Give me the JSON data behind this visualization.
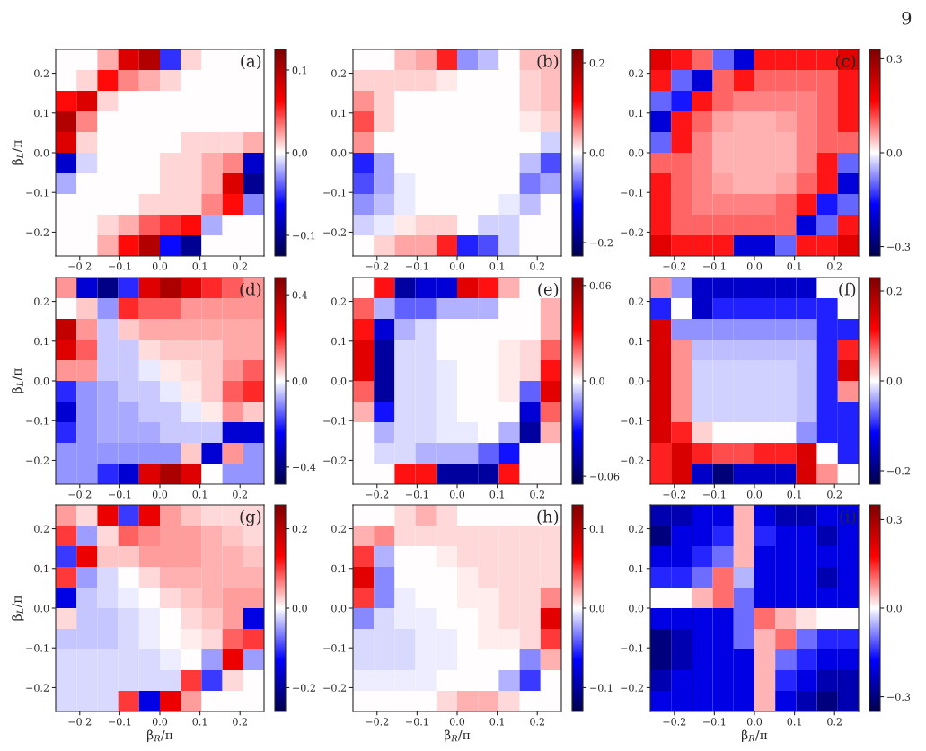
{
  "chart_data": [
    {
      "type": "heatmap",
      "title": "(a)",
      "ylabel": "β$_{L}$/π",
      "annotations": [
        "9"
      ],
      "x": [
        -0.234,
        -0.182,
        -0.13,
        -0.078,
        -0.026,
        0.026,
        0.078,
        0.13,
        0.182,
        0.234
      ],
      "y": [
        0.234,
        0.182,
        0.13,
        0.078,
        0.026,
        -0.026,
        -0.078,
        -0.13,
        -0.182,
        -0.234
      ],
      "xlim": [
        -0.26,
        0.26
      ],
      "ylim": [
        -0.26,
        0.26
      ],
      "xticks": [
        {
          "value": -0.2,
          "label": "−0.2"
        },
        {
          "value": -0.1,
          "label": "−0.1"
        },
        {
          "value": 0,
          "label": "0.0"
        },
        {
          "value": 0.1,
          "label": "0.1"
        },
        {
          "value": 0.2,
          "label": "0.2"
        }
      ],
      "yticks": [
        {
          "value": -0.2,
          "label": "−0.2"
        },
        {
          "value": -0.1,
          "label": "−0.1"
        },
        {
          "value": 0,
          "label": "0.0"
        },
        {
          "value": 0.1,
          "label": "0.1"
        },
        {
          "value": 0.2,
          "label": "0.2"
        }
      ],
      "clim": [
        -0.125,
        0.125
      ],
      "cticks": [
        {
          "value": -0.1,
          "label": "−0.1"
        },
        {
          "value": 0,
          "label": "0.0"
        },
        {
          "value": 0.1,
          "label": "0.1"
        }
      ],
      "cells": [
        [
          0,
          0,
          0.02,
          0.08,
          0.1,
          -0.05,
          0.01,
          0,
          0,
          0
        ],
        [
          0,
          0.01,
          0.06,
          0.03,
          0.02,
          0.01,
          0,
          0,
          0,
          0
        ],
        [
          0.06,
          0.08,
          0.01,
          0,
          0,
          0,
          0,
          0,
          0,
          0
        ],
        [
          0.1,
          0.03,
          0,
          0,
          0,
          0,
          0,
          0,
          0,
          0
        ],
        [
          0.08,
          0.01,
          0,
          0,
          0,
          0,
          0.01,
          0.01,
          0.01,
          0.02
        ],
        [
          -0.08,
          -0.01,
          0,
          0,
          0,
          0.01,
          0.01,
          0.02,
          0.03,
          -0.08
        ],
        [
          -0.02,
          0,
          0,
          0,
          0,
          0.01,
          0.01,
          0.02,
          0.08,
          -0.1
        ],
        [
          0,
          0,
          0,
          0,
          0.01,
          0.01,
          0.01,
          0.03,
          0.06,
          -0.03
        ],
        [
          0,
          0,
          0.01,
          0.02,
          0.04,
          0.05,
          0.06,
          -0.02,
          0,
          0
        ],
        [
          0,
          0,
          0.02,
          0.06,
          0.1,
          -0.06,
          -0.1,
          0,
          0,
          0
        ]
      ]
    },
    {
      "type": "heatmap",
      "title": "(b)",
      "x": [
        -0.234,
        -0.182,
        -0.13,
        -0.078,
        -0.026,
        0.026,
        0.078,
        0.13,
        0.182,
        0.234
      ],
      "y": [
        0.234,
        0.182,
        0.13,
        0.078,
        0.026,
        -0.026,
        -0.078,
        -0.13,
        -0.182,
        -0.234
      ],
      "xlim": [
        -0.26,
        0.26
      ],
      "ylim": [
        -0.26,
        0.26
      ],
      "xticks": [
        {
          "value": -0.2,
          "label": "−0.2"
        },
        {
          "value": -0.1,
          "label": "−0.1"
        },
        {
          "value": 0,
          "label": "0.0"
        },
        {
          "value": 0.1,
          "label": "0.1"
        },
        {
          "value": 0.2,
          "label": "0.2"
        }
      ],
      "yticks": [
        {
          "value": -0.2,
          "label": "−0.2"
        },
        {
          "value": -0.1,
          "label": "−0.1"
        },
        {
          "value": 0,
          "label": "0.0"
        },
        {
          "value": 0.1,
          "label": "0.1"
        },
        {
          "value": 0.2,
          "label": "0.2"
        }
      ],
      "clim": [
        -0.23,
        0.23
      ],
      "cticks": [
        {
          "value": -0.2,
          "label": "−0.2"
        },
        {
          "value": 0,
          "label": "0.0"
        },
        {
          "value": 0.2,
          "label": "0.2"
        }
      ],
      "cells": [
        [
          0,
          0,
          0.03,
          0.04,
          0.1,
          -0.05,
          -0.03,
          0,
          0.03,
          0.03
        ],
        [
          0.02,
          0.02,
          0.02,
          0.02,
          0.01,
          0,
          0,
          0,
          0.02,
          0.03
        ],
        [
          0.05,
          0.02,
          0,
          0,
          0,
          0,
          0,
          0,
          0.02,
          0.03
        ],
        [
          0.08,
          0.02,
          0,
          0,
          0,
          0,
          0,
          0,
          0.01,
          0.02
        ],
        [
          0.05,
          0,
          0,
          0,
          0,
          0,
          0,
          0,
          0,
          -0.02
        ],
        [
          -0.1,
          -0.04,
          0,
          0,
          0,
          0,
          0,
          0,
          -0.03,
          -0.08
        ],
        [
          -0.08,
          -0.04,
          -0.01,
          0,
          0,
          0,
          0,
          0,
          -0.06,
          -0.04
        ],
        [
          -0.05,
          -0.03,
          -0.01,
          0,
          0,
          0,
          0,
          -0.01,
          -0.03,
          0
        ],
        [
          -0.02,
          -0.01,
          0.01,
          0.02,
          0.02,
          0,
          -0.02,
          -0.02,
          0,
          0
        ],
        [
          0,
          0.02,
          0.04,
          0.04,
          0.1,
          -0.1,
          -0.08,
          -0.02,
          0,
          0
        ]
      ]
    },
    {
      "type": "heatmap",
      "title": "(c)",
      "x": [
        -0.234,
        -0.182,
        -0.13,
        -0.078,
        -0.026,
        0.026,
        0.078,
        0.13,
        0.182,
        0.234
      ],
      "y": [
        0.234,
        0.182,
        0.13,
        0.078,
        0.026,
        -0.026,
        -0.078,
        -0.13,
        -0.182,
        -0.234
      ],
      "xlim": [
        -0.26,
        0.26
      ],
      "ylim": [
        -0.26,
        0.26
      ],
      "xticks": [
        {
          "value": -0.2,
          "label": "−0.2"
        },
        {
          "value": -0.1,
          "label": "−0.1"
        },
        {
          "value": 0,
          "label": "0.0"
        },
        {
          "value": 0.1,
          "label": "0.1"
        },
        {
          "value": 0.2,
          "label": "0.2"
        }
      ],
      "yticks": [
        {
          "value": -0.2,
          "label": "−0.2"
        },
        {
          "value": -0.1,
          "label": "−0.1"
        },
        {
          "value": 0,
          "label": "0.0"
        },
        {
          "value": 0.1,
          "label": "0.1"
        },
        {
          "value": 0.2,
          "label": "0.2"
        }
      ],
      "clim": [
        -0.33,
        0.33
      ],
      "cticks": [
        {
          "value": -0.3,
          "label": "−0.3"
        },
        {
          "value": 0,
          "label": "0.0"
        },
        {
          "value": 0.3,
          "label": "0.3"
        }
      ],
      "cells": [
        [
          0.2,
          0.15,
          0.1,
          -0.1,
          -0.2,
          0.15,
          0.15,
          0.15,
          0.15,
          0.2
        ],
        [
          0.15,
          -0.1,
          -0.2,
          0.1,
          0.15,
          0.1,
          0.1,
          0.1,
          0.1,
          0.15
        ],
        [
          -0.1,
          -0.15,
          0.15,
          0.1,
          0.08,
          0.08,
          0.08,
          0.08,
          0.1,
          0.15
        ],
        [
          -0.2,
          0.15,
          0.1,
          0.06,
          0.05,
          0.05,
          0.06,
          0.08,
          0.1,
          0.15
        ],
        [
          -0.1,
          0.15,
          0.08,
          0.05,
          0.05,
          0.05,
          0.05,
          0.08,
          0.1,
          0.1
        ],
        [
          0.1,
          0.1,
          0.08,
          0.05,
          0.05,
          0.05,
          0.05,
          0.08,
          0.15,
          -0.1
        ],
        [
          0.15,
          0.1,
          0.08,
          0.06,
          0.05,
          0.05,
          0.06,
          0.1,
          0.15,
          -0.2
        ],
        [
          0.15,
          0.1,
          0.08,
          0.08,
          0.08,
          0.08,
          0.1,
          0.15,
          -0.15,
          -0.1
        ],
        [
          0.15,
          0.1,
          0.1,
          0.1,
          0.1,
          0.1,
          0.1,
          -0.2,
          -0.1,
          0.15
        ],
        [
          0.2,
          0.15,
          0.15,
          0.15,
          -0.2,
          -0.2,
          -0.1,
          0.15,
          0.15,
          0.2
        ]
      ]
    },
    {
      "type": "heatmap",
      "title": "(d)",
      "ylabel": "β$_{L}$/π",
      "x": [
        -0.234,
        -0.182,
        -0.13,
        -0.078,
        -0.026,
        0.026,
        0.078,
        0.13,
        0.182,
        0.234
      ],
      "y": [
        0.234,
        0.182,
        0.13,
        0.078,
        0.026,
        -0.026,
        -0.078,
        -0.13,
        -0.182,
        -0.234
      ],
      "xlim": [
        -0.26,
        0.26
      ],
      "ylim": [
        -0.26,
        0.26
      ],
      "xticks": [
        {
          "value": -0.2,
          "label": "−0.2"
        },
        {
          "value": -0.1,
          "label": "−0.1"
        },
        {
          "value": 0,
          "label": "0.0"
        },
        {
          "value": 0.1,
          "label": "0.1"
        },
        {
          "value": 0.2,
          "label": "0.2"
        }
      ],
      "yticks": [
        {
          "value": -0.2,
          "label": "−0.2"
        },
        {
          "value": -0.1,
          "label": "−0.1"
        },
        {
          "value": 0,
          "label": "0.0"
        },
        {
          "value": 0.1,
          "label": "0.1"
        },
        {
          "value": 0.2,
          "label": "0.2"
        }
      ],
      "clim": [
        -0.48,
        0.48
      ],
      "cticks": [
        {
          "value": -0.4,
          "label": "−0.4"
        },
        {
          "value": 0,
          "label": "0.0"
        },
        {
          "value": 0.4,
          "label": "0.4"
        }
      ],
      "cells": [
        [
          0.1,
          -0.3,
          -0.4,
          -0.2,
          0.3,
          0.4,
          0.3,
          0.2,
          0.15,
          0.1
        ],
        [
          0,
          0.05,
          -0.1,
          0.2,
          0.15,
          0.15,
          0.1,
          0.1,
          0.1,
          0.1
        ],
        [
          0.35,
          0.1,
          -0.05,
          0.05,
          0.08,
          0.08,
          0.08,
          0.08,
          0.08,
          0.08
        ],
        [
          0.3,
          0.15,
          -0.05,
          -0.05,
          0.03,
          0.05,
          0.05,
          0.05,
          0.08,
          0.08
        ],
        [
          0.1,
          0.1,
          -0.05,
          -0.05,
          -0.02,
          0.02,
          0.03,
          0.05,
          0.1,
          0.15
        ],
        [
          -0.2,
          -0.1,
          -0.08,
          -0.05,
          -0.05,
          -0.02,
          0.02,
          0.05,
          0.15,
          0.2
        ],
        [
          -0.3,
          -0.1,
          -0.08,
          -0.08,
          -0.05,
          -0.05,
          -0.02,
          0.02,
          0.1,
          0.05
        ],
        [
          -0.2,
          -0.1,
          -0.08,
          -0.08,
          -0.08,
          -0.05,
          -0.05,
          -0.05,
          -0.3,
          -0.3
        ],
        [
          -0.1,
          -0.1,
          -0.1,
          -0.1,
          -0.1,
          -0.1,
          0.05,
          -0.3,
          0.1,
          -0.1
        ],
        [
          -0.1,
          -0.1,
          -0.2,
          -0.3,
          0.3,
          0.4,
          0.3,
          0,
          -0.1,
          -0.1
        ]
      ]
    },
    {
      "type": "heatmap",
      "title": "(e)",
      "x": [
        -0.234,
        -0.182,
        -0.13,
        -0.078,
        -0.026,
        0.026,
        0.078,
        0.13,
        0.182,
        0.234
      ],
      "y": [
        0.234,
        0.182,
        0.13,
        0.078,
        0.026,
        -0.026,
        -0.078,
        -0.13,
        -0.182,
        -0.234
      ],
      "xlim": [
        -0.26,
        0.26
      ],
      "ylim": [
        -0.26,
        0.26
      ],
      "xticks": [
        {
          "value": -0.2,
          "label": "−0.2"
        },
        {
          "value": -0.1,
          "label": "−0.1"
        },
        {
          "value": 0,
          "label": "0.0"
        },
        {
          "value": 0.1,
          "label": "0.1"
        },
        {
          "value": 0.2,
          "label": "0.2"
        }
      ],
      "yticks": [
        {
          "value": -0.2,
          "label": "−0.2"
        },
        {
          "value": -0.1,
          "label": "−0.1"
        },
        {
          "value": 0,
          "label": "0.0"
        },
        {
          "value": 0.1,
          "label": "0.1"
        },
        {
          "value": 0.2,
          "label": "0.2"
        }
      ],
      "clim": [
        -0.065,
        0.065
      ],
      "cticks": [
        {
          "value": -0.06,
          "label": "−0.06"
        },
        {
          "value": 0,
          "label": "0.0"
        },
        {
          "value": 0.06,
          "label": "0.06"
        }
      ],
      "cells": [
        [
          0,
          0.03,
          -0.05,
          -0.04,
          -0.04,
          0.04,
          0.03,
          0.01,
          0,
          0
        ],
        [
          0.02,
          -0.01,
          -0.02,
          -0.02,
          -0.01,
          -0.01,
          -0.01,
          0,
          0,
          0.01
        ],
        [
          0.03,
          -0.04,
          -0.01,
          -0.005,
          0,
          0,
          0,
          0,
          0,
          0.01
        ],
        [
          0.04,
          -0.05,
          -0.005,
          -0.005,
          0,
          0,
          0,
          0.003,
          0.005,
          0.02
        ],
        [
          0.04,
          -0.05,
          -0.005,
          -0.005,
          -0.003,
          0,
          0,
          0.003,
          0.005,
          0.03
        ],
        [
          0.02,
          -0.05,
          -0.005,
          -0.005,
          -0.003,
          0,
          0,
          0.003,
          -0.02,
          0.04
        ],
        [
          0.01,
          -0.03,
          -0.005,
          -0.005,
          -0.003,
          0,
          0,
          0,
          -0.04,
          0.02
        ],
        [
          0,
          -0.01,
          -0.005,
          -0.005,
          -0.003,
          -0.003,
          0,
          -0.01,
          -0.05,
          0.01
        ],
        [
          0,
          -0.005,
          -0.005,
          -0.01,
          -0.01,
          -0.01,
          -0.02,
          -0.03,
          0,
          0
        ],
        [
          0,
          0,
          0.03,
          0.03,
          -0.05,
          -0.05,
          -0.05,
          0.03,
          0,
          0
        ]
      ]
    },
    {
      "type": "heatmap",
      "title": "(f)",
      "x": [
        -0.234,
        -0.182,
        -0.13,
        -0.078,
        -0.026,
        0.026,
        0.078,
        0.13,
        0.182,
        0.234
      ],
      "y": [
        0.234,
        0.182,
        0.13,
        0.078,
        0.026,
        -0.026,
        -0.078,
        -0.13,
        -0.182,
        -0.234
      ],
      "xlim": [
        -0.26,
        0.26
      ],
      "ylim": [
        -0.26,
        0.26
      ],
      "xticks": [
        {
          "value": -0.2,
          "label": "−0.2"
        },
        {
          "value": -0.1,
          "label": "−0.1"
        },
        {
          "value": 0,
          "label": "0.0"
        },
        {
          "value": 0.1,
          "label": "0.1"
        },
        {
          "value": 0.2,
          "label": "0.2"
        }
      ],
      "yticks": [
        {
          "value": -0.2,
          "label": "−0.2"
        },
        {
          "value": -0.1,
          "label": "−0.1"
        },
        {
          "value": 0,
          "label": "0.0"
        },
        {
          "value": 0.1,
          "label": "0.1"
        },
        {
          "value": 0.2,
          "label": "0.2"
        }
      ],
      "clim": [
        -0.23,
        0.23
      ],
      "cticks": [
        {
          "value": -0.2,
          "label": "−0.2"
        },
        {
          "value": 0,
          "label": "0.0"
        },
        {
          "value": 0.2,
          "label": "0.2"
        }
      ],
      "cells": [
        [
          0.05,
          -0.05,
          -0.15,
          -0.15,
          -0.15,
          -0.15,
          -0.15,
          -0.15,
          0,
          0
        ],
        [
          -0.1,
          0,
          -0.15,
          -0.1,
          -0.1,
          -0.1,
          -0.1,
          -0.1,
          -0.1,
          0
        ],
        [
          0.15,
          -0.05,
          -0.05,
          -0.05,
          -0.05,
          -0.05,
          -0.05,
          -0.05,
          -0.1,
          -0.1
        ],
        [
          0.15,
          0.05,
          -0.03,
          -0.03,
          -0.03,
          -0.03,
          -0.03,
          -0.03,
          -0.1,
          0.1
        ],
        [
          0.15,
          0.05,
          -0.02,
          -0.02,
          -0.02,
          -0.02,
          -0.02,
          -0.03,
          -0.1,
          0.15
        ],
        [
          0.15,
          0.05,
          -0.02,
          -0.02,
          -0.02,
          -0.02,
          -0.02,
          -0.03,
          -0.1,
          0.05
        ],
        [
          0.15,
          0.05,
          -0.02,
          -0.02,
          -0.02,
          -0.02,
          -0.02,
          -0.03,
          -0.1,
          -0.1
        ],
        [
          0.15,
          0.1,
          0.02,
          0,
          0,
          0,
          0,
          -0.05,
          -0.1,
          -0.1
        ],
        [
          0.1,
          0.15,
          0.1,
          0.08,
          0.08,
          0.1,
          0.1,
          0.15,
          0,
          -0.1
        ],
        [
          0.1,
          0.15,
          -0.15,
          -0.2,
          -0.15,
          -0.15,
          -0.15,
          0.15,
          0.05,
          0
        ]
      ]
    },
    {
      "type": "heatmap",
      "title": "(g)",
      "xlabel": "β$_{R}$/π",
      "ylabel": "β$_{L}$/π",
      "x": [
        -0.234,
        -0.182,
        -0.13,
        -0.078,
        -0.026,
        0.026,
        0.078,
        0.13,
        0.182,
        0.234
      ],
      "y": [
        0.234,
        0.182,
        0.13,
        0.078,
        0.026,
        -0.026,
        -0.078,
        -0.13,
        -0.182,
        -0.234
      ],
      "xlim": [
        -0.26,
        0.26
      ],
      "ylim": [
        -0.26,
        0.26
      ],
      "xticks": [
        {
          "value": -0.2,
          "label": "−0.2"
        },
        {
          "value": -0.1,
          "label": "−0.1"
        },
        {
          "value": 0,
          "label": "0.0"
        },
        {
          "value": 0.1,
          "label": "0.1"
        },
        {
          "value": 0.2,
          "label": "0.2"
        }
      ],
      "yticks": [
        {
          "value": -0.2,
          "label": "−0.2"
        },
        {
          "value": -0.1,
          "label": "−0.1"
        },
        {
          "value": 0,
          "label": "0.0"
        },
        {
          "value": 0.1,
          "label": "0.1"
        },
        {
          "value": 0.2,
          "label": "0.2"
        }
      ],
      "clim": [
        -0.26,
        0.26
      ],
      "cticks": [
        {
          "value": -0.2,
          "label": "−0.2"
        },
        {
          "value": 0,
          "label": "0.0"
        },
        {
          "value": 0.2,
          "label": "0.2"
        }
      ],
      "cells": [
        [
          0.05,
          0.02,
          0.15,
          -0.1,
          0.15,
          0.05,
          0.03,
          0.02,
          0.02,
          0.02
        ],
        [
          0.1,
          -0.05,
          0.02,
          0.08,
          0.06,
          0.05,
          0.05,
          0.04,
          0.03,
          0.02
        ],
        [
          -0.1,
          0.15,
          0.03,
          0.03,
          0.05,
          0.05,
          0.05,
          0.04,
          0.04,
          0.03
        ],
        [
          0.1,
          -0.05,
          -0.02,
          0,
          0.02,
          0.04,
          0.04,
          0.04,
          0.04,
          0.04
        ],
        [
          -0.15,
          -0.03,
          -0.02,
          -0.01,
          0,
          0.02,
          0.03,
          0.04,
          0.05,
          0.05
        ],
        [
          0.02,
          -0.03,
          -0.03,
          -0.02,
          -0.01,
          0,
          0.02,
          0.03,
          0.05,
          -0.15
        ],
        [
          -0.03,
          -0.03,
          -0.03,
          -0.02,
          -0.01,
          0,
          0.01,
          0.02,
          0.08,
          0.1
        ],
        [
          -0.02,
          -0.02,
          -0.02,
          -0.02,
          -0.02,
          -0.01,
          0,
          -0.05,
          0.15,
          -0.05
        ],
        [
          -0.02,
          -0.02,
          -0.02,
          -0.02,
          -0.02,
          -0.02,
          0.1,
          -0.1,
          0.02,
          0
        ],
        [
          -0.02,
          -0.02,
          -0.02,
          0.1,
          -0.15,
          0.15,
          0.05,
          0,
          0,
          0
        ]
      ]
    },
    {
      "type": "heatmap",
      "title": "(h)",
      "xlabel": "β$_{R}$/π",
      "x": [
        -0.234,
        -0.182,
        -0.13,
        -0.078,
        -0.026,
        0.026,
        0.078,
        0.13,
        0.182,
        0.234
      ],
      "y": [
        0.234,
        0.182,
        0.13,
        0.078,
        0.026,
        -0.026,
        -0.078,
        -0.13,
        -0.182,
        -0.234
      ],
      "xlim": [
        -0.26,
        0.26
      ],
      "ylim": [
        -0.26,
        0.26
      ],
      "xticks": [
        {
          "value": -0.2,
          "label": "−0.2"
        },
        {
          "value": -0.1,
          "label": "−0.1"
        },
        {
          "value": 0,
          "label": "0.0"
        },
        {
          "value": 0.1,
          "label": "0.1"
        },
        {
          "value": 0.2,
          "label": "0.2"
        }
      ],
      "yticks": [
        {
          "value": -0.2,
          "label": "−0.2"
        },
        {
          "value": -0.1,
          "label": "−0.1"
        },
        {
          "value": 0,
          "label": "0.0"
        },
        {
          "value": 0.1,
          "label": "0.1"
        },
        {
          "value": 0.2,
          "label": "0.2"
        }
      ],
      "clim": [
        -0.13,
        0.13
      ],
      "cticks": [
        {
          "value": -0.1,
          "label": "−0.1"
        },
        {
          "value": 0,
          "label": "0.0"
        },
        {
          "value": 0.1,
          "label": "0.1"
        }
      ],
      "cells": [
        [
          0,
          0,
          0.01,
          0.02,
          0.01,
          0,
          0,
          0,
          0,
          0
        ],
        [
          0.02,
          0.03,
          0.01,
          0.01,
          0.01,
          0.01,
          0.01,
          0.01,
          0.01,
          0.01
        ],
        [
          0.05,
          -0.02,
          0,
          0,
          0.005,
          0.01,
          0.01,
          0.01,
          0.01,
          0.01
        ],
        [
          0.08,
          -0.03,
          0,
          0,
          0,
          0.005,
          0.01,
          0.01,
          0.01,
          0.01
        ],
        [
          0.05,
          -0.03,
          -0.005,
          0,
          0,
          0.005,
          0.005,
          0.01,
          0.01,
          0.03
        ],
        [
          -0.03,
          -0.01,
          -0.005,
          -0.005,
          0,
          0,
          0.005,
          0.01,
          0.01,
          0.08
        ],
        [
          -0.01,
          -0.01,
          -0.01,
          -0.005,
          -0.005,
          0,
          0.005,
          0.005,
          0.01,
          0.05
        ],
        [
          -0.01,
          -0.01,
          -0.01,
          -0.005,
          -0.005,
          0,
          0,
          0,
          -0.03,
          0.02
        ],
        [
          -0.005,
          -0.005,
          -0.005,
          -0.005,
          0,
          0,
          0,
          -0.02,
          -0.05,
          0
        ],
        [
          0,
          0,
          0,
          0,
          0.01,
          0.02,
          0.02,
          0.01,
          0,
          0
        ]
      ]
    },
    {
      "type": "heatmap",
      "title": "(i)",
      "xlabel": "β$_{R}$/π",
      "x": [
        -0.234,
        -0.182,
        -0.13,
        -0.078,
        -0.026,
        0.026,
        0.078,
        0.13,
        0.182,
        0.234
      ],
      "y": [
        0.234,
        0.182,
        0.13,
        0.078,
        0.026,
        -0.026,
        -0.078,
        -0.13,
        -0.182,
        -0.234
      ],
      "xlim": [
        -0.26,
        0.26
      ],
      "ylim": [
        -0.26,
        0.26
      ],
      "xticks": [
        {
          "value": -0.2,
          "label": "−0.2"
        },
        {
          "value": -0.1,
          "label": "−0.1"
        },
        {
          "value": 0,
          "label": "0.0"
        },
        {
          "value": 0.1,
          "label": "0.1"
        },
        {
          "value": 0.2,
          "label": "0.2"
        }
      ],
      "yticks": [
        {
          "value": -0.2,
          "label": "−0.2"
        },
        {
          "value": -0.1,
          "label": "−0.1"
        },
        {
          "value": 0,
          "label": "0.0"
        },
        {
          "value": 0.1,
          "label": "0.1"
        },
        {
          "value": 0.2,
          "label": "0.2"
        }
      ],
      "clim": [
        -0.35,
        0.35
      ],
      "cticks": [
        {
          "value": -0.3,
          "label": "−0.3"
        },
        {
          "value": 0,
          "label": "0.0"
        },
        {
          "value": 0.3,
          "label": "0.3"
        }
      ],
      "cells": [
        [
          -0.25,
          -0.25,
          -0.2,
          -0.2,
          0.05,
          -0.2,
          -0.25,
          -0.25,
          -0.2,
          -0.2
        ],
        [
          -0.3,
          -0.2,
          -0.2,
          -0.15,
          0.05,
          -0.15,
          -0.2,
          -0.2,
          -0.25,
          -0.2
        ],
        [
          -0.2,
          -0.2,
          -0.15,
          -0.1,
          0.05,
          -0.2,
          -0.2,
          -0.2,
          -0.2,
          -0.2
        ],
        [
          -0.15,
          -0.15,
          -0.1,
          0.1,
          -0.05,
          -0.2,
          -0.2,
          -0.2,
          -0.25,
          -0.2
        ],
        [
          0,
          0,
          0.05,
          0.1,
          -0.1,
          -0.2,
          -0.2,
          -0.2,
          -0.2,
          -0.2
        ],
        [
          -0.2,
          -0.2,
          -0.2,
          -0.2,
          -0.1,
          0.1,
          0.05,
          0.02,
          0,
          0
        ],
        [
          -0.3,
          -0.25,
          -0.2,
          -0.2,
          -0.1,
          0.05,
          0.1,
          -0.1,
          -0.15,
          -0.15
        ],
        [
          -0.3,
          -0.25,
          -0.2,
          -0.2,
          -0.2,
          0.05,
          -0.1,
          -0.15,
          -0.2,
          -0.2
        ],
        [
          -0.25,
          -0.2,
          -0.2,
          -0.2,
          -0.2,
          0.05,
          -0.15,
          -0.2,
          -0.25,
          -0.25
        ],
        [
          -0.2,
          -0.2,
          -0.2,
          -0.2,
          -0.2,
          0.05,
          -0.2,
          -0.25,
          -0.3,
          -0.25
        ]
      ]
    }
  ]
}
